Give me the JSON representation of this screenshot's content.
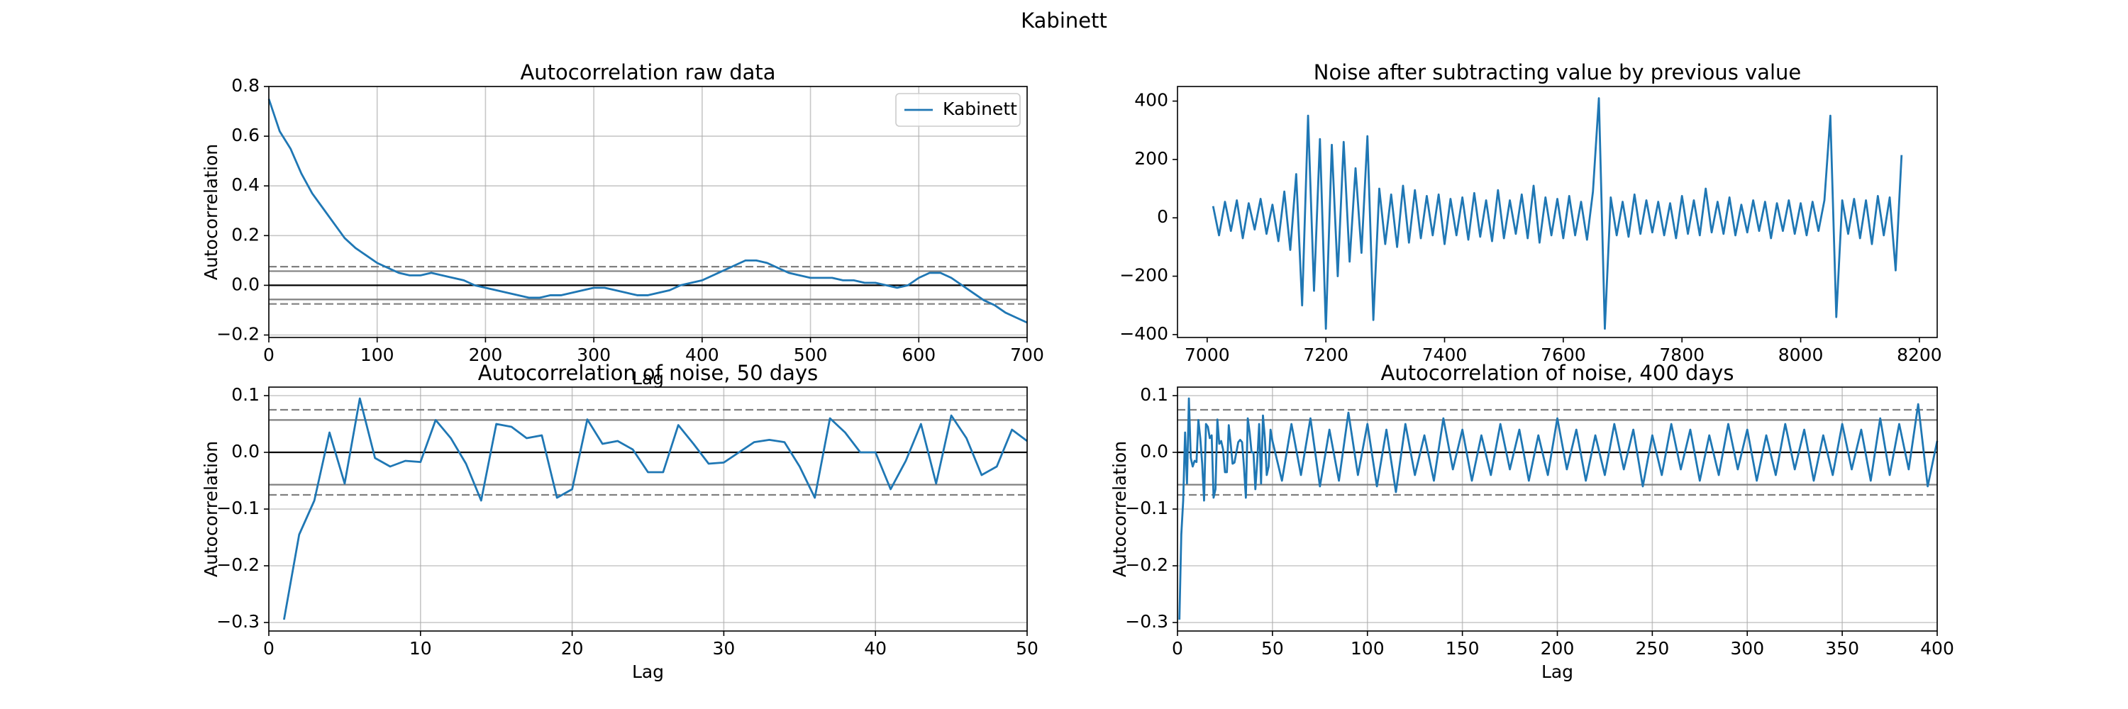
{
  "suptitle": "Kabinett",
  "chart_data": [
    {
      "type": "line",
      "title": "Autocorrelation raw data",
      "xlabel": "Lag",
      "ylabel": "Autocorrelation",
      "x": [
        0,
        10,
        20,
        30,
        40,
        50,
        60,
        70,
        80,
        90,
        100,
        110,
        120,
        130,
        140,
        150,
        160,
        170,
        180,
        190,
        200,
        210,
        220,
        230,
        240,
        250,
        260,
        270,
        280,
        290,
        300,
        310,
        320,
        330,
        340,
        350,
        360,
        370,
        380,
        390,
        400,
        410,
        420,
        430,
        440,
        450,
        460,
        470,
        480,
        490,
        500,
        510,
        520,
        530,
        540,
        550,
        560,
        570,
        580,
        590,
        600,
        610,
        620,
        630,
        640,
        650,
        660,
        670,
        680,
        690,
        700
      ],
      "series": [
        {
          "name": "Kabinett",
          "color": "#1f77b4",
          "values": [
            0.75,
            0.62,
            0.55,
            0.45,
            0.37,
            0.31,
            0.25,
            0.19,
            0.15,
            0.12,
            0.09,
            0.07,
            0.05,
            0.04,
            0.04,
            0.05,
            0.04,
            0.03,
            0.02,
            0.0,
            -0.01,
            -0.02,
            -0.03,
            -0.04,
            -0.05,
            -0.05,
            -0.04,
            -0.04,
            -0.03,
            -0.02,
            -0.01,
            -0.01,
            -0.02,
            -0.03,
            -0.04,
            -0.04,
            -0.03,
            -0.02,
            0.0,
            0.01,
            0.02,
            0.04,
            0.06,
            0.08,
            0.1,
            0.1,
            0.09,
            0.07,
            0.05,
            0.04,
            0.03,
            0.03,
            0.03,
            0.02,
            0.02,
            0.01,
            0.01,
            0.0,
            -0.01,
            0.0,
            0.03,
            0.05,
            0.05,
            0.03,
            0.0,
            -0.03,
            -0.06,
            -0.08,
            -0.11,
            -0.13,
            -0.15
          ]
        }
      ],
      "xlim": [
        0,
        700
      ],
      "xticks": [
        0,
        100,
        200,
        300,
        400,
        500,
        600,
        700
      ],
      "ylim": [
        -0.21,
        0.8
      ],
      "yticks": [
        {
          "value": -0.2,
          "label": "−0.2"
        },
        {
          "value": 0,
          "label": "0.0"
        },
        {
          "value": 0.2,
          "label": "0.2"
        },
        {
          "value": 0.4,
          "label": "0.4"
        },
        {
          "value": 0.6,
          "label": "0.6"
        },
        {
          "value": 0.8,
          "label": "0.8"
        }
      ],
      "grid": true,
      "legend": "upper right",
      "hlines": [
        {
          "y": 0.075,
          "color": "#808080",
          "dashed": true
        },
        {
          "y": 0.057,
          "color": "#808080",
          "dashed": false
        },
        {
          "y": 0,
          "color": "#000000",
          "dashed": false
        },
        {
          "y": -0.057,
          "color": "#808080",
          "dashed": false
        },
        {
          "y": -0.075,
          "color": "#808080",
          "dashed": true
        }
      ]
    },
    {
      "type": "line",
      "title": "Noise after subtracting value by previous value",
      "x": [
        7010,
        7020,
        7030,
        7040,
        7050,
        7060,
        7070,
        7080,
        7090,
        7100,
        7110,
        7120,
        7130,
        7140,
        7150,
        7160,
        7170,
        7180,
        7190,
        7200,
        7210,
        7220,
        7230,
        7240,
        7250,
        7260,
        7270,
        7280,
        7290,
        7300,
        7310,
        7320,
        7330,
        7340,
        7350,
        7360,
        7370,
        7380,
        7390,
        7400,
        7410,
        7420,
        7430,
        7440,
        7450,
        7460,
        7470,
        7480,
        7490,
        7500,
        7510,
        7520,
        7530,
        7540,
        7550,
        7560,
        7570,
        7580,
        7590,
        7600,
        7610,
        7620,
        7630,
        7640,
        7650,
        7660,
        7670,
        7680,
        7690,
        7700,
        7710,
        7720,
        7730,
        7740,
        7750,
        7760,
        7770,
        7780,
        7790,
        7800,
        7810,
        7820,
        7830,
        7840,
        7850,
        7860,
        7870,
        7880,
        7890,
        7900,
        7910,
        7920,
        7930,
        7940,
        7950,
        7960,
        7970,
        7980,
        7990,
        8000,
        8010,
        8020,
        8030,
        8040,
        8050,
        8060,
        8070,
        8080,
        8090,
        8100,
        8110,
        8120,
        8130,
        8140,
        8150,
        8160,
        8170
      ],
      "series": [
        {
          "color": "#1f77b4",
          "values": [
            40,
            -60,
            55,
            -45,
            60,
            -70,
            50,
            -40,
            65,
            -55,
            45,
            -80,
            90,
            -110,
            150,
            -300,
            350,
            -250,
            270,
            -380,
            250,
            -200,
            260,
            -150,
            170,
            -120,
            280,
            -350,
            100,
            -90,
            80,
            -100,
            110,
            -85,
            95,
            -70,
            75,
            -60,
            80,
            -90,
            65,
            -60,
            70,
            -75,
            85,
            -65,
            60,
            -80,
            95,
            -70,
            60,
            -55,
            80,
            -70,
            110,
            -85,
            70,
            -60,
            65,
            -70,
            75,
            -60,
            55,
            -75,
            90,
            410,
            -380,
            70,
            -60,
            55,
            -65,
            80,
            -55,
            60,
            -50,
            55,
            -60,
            50,
            -70,
            75,
            -55,
            60,
            -60,
            100,
            -50,
            55,
            -55,
            70,
            -60,
            45,
            -50,
            60,
            -45,
            55,
            -70,
            50,
            -45,
            60,
            -55,
            50,
            -60,
            55,
            -45,
            60,
            350,
            -340,
            60,
            -55,
            65,
            -70,
            60,
            -90,
            75,
            -60,
            70,
            -180,
            215
          ]
        }
      ],
      "xlim": [
        6950,
        8230
      ],
      "xticks": [
        7000,
        7200,
        7400,
        7600,
        7800,
        8000,
        8200
      ],
      "ylim": [
        -410,
        450
      ],
      "yticks": [
        {
          "value": -400,
          "label": "−400"
        },
        {
          "value": -200,
          "label": "−200"
        },
        0,
        200,
        400
      ],
      "grid": false
    },
    {
      "type": "line",
      "title": "Autocorrelation of noise, 50 days",
      "xlabel": "Lag",
      "ylabel": "Autocorrelation",
      "x": [
        1,
        2,
        3,
        4,
        5,
        6,
        7,
        8,
        9,
        10,
        11,
        12,
        13,
        14,
        15,
        16,
        17,
        18,
        19,
        20,
        21,
        22,
        23,
        24,
        25,
        26,
        27,
        28,
        29,
        30,
        31,
        32,
        33,
        34,
        35,
        36,
        37,
        38,
        39,
        40,
        41,
        42,
        43,
        44,
        45,
        46,
        47,
        48,
        49,
        50
      ],
      "series": [
        {
          "color": "#1f77b4",
          "values": [
            -0.295,
            -0.145,
            -0.085,
            0.035,
            -0.055,
            0.095,
            -0.01,
            -0.025,
            -0.015,
            -0.017,
            0.057,
            0.025,
            -0.02,
            -0.085,
            0.05,
            0.045,
            0.025,
            0.03,
            -0.08,
            -0.065,
            0.058,
            0.015,
            0.02,
            0.005,
            -0.035,
            -0.035,
            0.048,
            0.015,
            -0.02,
            -0.018,
            0.0,
            0.018,
            0.022,
            0.018,
            -0.025,
            -0.08,
            0.06,
            0.035,
            0.0,
            0.0,
            -0.065,
            -0.015,
            0.05,
            -0.055,
            0.065,
            0.025,
            -0.04,
            -0.025,
            0.04,
            0.02
          ]
        }
      ],
      "xlim": [
        0,
        50
      ],
      "xticks": [
        0,
        10,
        20,
        30,
        40,
        50
      ],
      "ylim": [
        -0.315,
        0.115
      ],
      "yticks": [
        {
          "value": -0.3,
          "label": "−0.3"
        },
        {
          "value": -0.2,
          "label": "−0.2"
        },
        {
          "value": -0.1,
          "label": "−0.1"
        },
        {
          "value": 0,
          "label": "0.0"
        },
        {
          "value": 0.1,
          "label": "0.1"
        }
      ],
      "grid": true,
      "hlines": [
        {
          "y": 0.075,
          "color": "#808080",
          "dashed": true
        },
        {
          "y": 0.057,
          "color": "#808080",
          "dashed": false
        },
        {
          "y": 0,
          "color": "#000000",
          "dashed": false
        },
        {
          "y": -0.057,
          "color": "#808080",
          "dashed": false
        },
        {
          "y": -0.075,
          "color": "#808080",
          "dashed": true
        }
      ]
    },
    {
      "type": "line",
      "title": "Autocorrelation of noise, 400 days",
      "xlabel": "Lag",
      "ylabel": "Autocorrelation",
      "x": [
        1,
        2,
        3,
        4,
        5,
        6,
        7,
        8,
        9,
        10,
        11,
        12,
        13,
        14,
        15,
        16,
        17,
        18,
        19,
        20,
        21,
        22,
        23,
        24,
        25,
        26,
        27,
        28,
        29,
        30,
        31,
        32,
        33,
        34,
        35,
        36,
        37,
        38,
        39,
        40,
        41,
        42,
        43,
        44,
        45,
        46,
        47,
        48,
        49,
        50,
        55,
        60,
        65,
        70,
        75,
        80,
        85,
        90,
        95,
        100,
        105,
        110,
        115,
        120,
        125,
        130,
        135,
        140,
        145,
        150,
        155,
        160,
        165,
        170,
        175,
        180,
        185,
        190,
        195,
        200,
        205,
        210,
        215,
        220,
        225,
        230,
        235,
        240,
        245,
        250,
        255,
        260,
        265,
        270,
        275,
        280,
        285,
        290,
        295,
        300,
        305,
        310,
        315,
        320,
        325,
        330,
        335,
        340,
        345,
        350,
        355,
        360,
        365,
        370,
        375,
        380,
        385,
        390,
        395,
        400
      ],
      "series": [
        {
          "color": "#1f77b4",
          "values": [
            -0.295,
            -0.145,
            -0.085,
            0.035,
            -0.055,
            0.095,
            -0.01,
            -0.025,
            -0.015,
            -0.017,
            0.057,
            0.025,
            -0.02,
            -0.085,
            0.05,
            0.045,
            0.025,
            0.03,
            -0.08,
            -0.065,
            0.058,
            0.015,
            0.02,
            0.005,
            -0.035,
            -0.035,
            0.048,
            0.015,
            -0.02,
            -0.018,
            0.0,
            0.018,
            0.022,
            0.018,
            -0.025,
            -0.08,
            0.06,
            0.035,
            0.0,
            0.0,
            -0.065,
            -0.015,
            0.05,
            -0.055,
            0.065,
            0.025,
            -0.04,
            -0.025,
            0.04,
            0.02,
            -0.05,
            0.05,
            -0.04,
            0.06,
            -0.06,
            0.04,
            -0.05,
            0.07,
            -0.04,
            0.05,
            -0.06,
            0.04,
            -0.07,
            0.05,
            -0.04,
            0.03,
            -0.05,
            0.06,
            -0.03,
            0.04,
            -0.05,
            0.03,
            -0.04,
            0.05,
            -0.03,
            0.04,
            -0.05,
            0.03,
            -0.04,
            0.06,
            -0.03,
            0.04,
            -0.05,
            0.03,
            -0.04,
            0.05,
            -0.03,
            0.04,
            -0.06,
            0.03,
            -0.04,
            0.05,
            -0.03,
            0.04,
            -0.05,
            0.03,
            -0.04,
            0.05,
            -0.03,
            0.04,
            -0.05,
            0.03,
            -0.04,
            0.05,
            -0.03,
            0.04,
            -0.05,
            0.03,
            -0.04,
            0.05,
            -0.03,
            0.04,
            -0.05,
            0.06,
            -0.04,
            0.05,
            -0.03,
            0.085,
            -0.06,
            0.02
          ]
        }
      ],
      "xlim": [
        0,
        400
      ],
      "xticks": [
        0,
        50,
        100,
        150,
        200,
        250,
        300,
        350,
        400
      ],
      "ylim": [
        -0.315,
        0.115
      ],
      "yticks": [
        {
          "value": -0.3,
          "label": "−0.3"
        },
        {
          "value": -0.2,
          "label": "−0.2"
        },
        {
          "value": -0.1,
          "label": "−0.1"
        },
        {
          "value": 0,
          "label": "0.0"
        },
        {
          "value": 0.1,
          "label": "0.1"
        }
      ],
      "grid": true,
      "hlines": [
        {
          "y": 0.075,
          "color": "#808080",
          "dashed": true
        },
        {
          "y": 0.057,
          "color": "#808080",
          "dashed": false
        },
        {
          "y": 0,
          "color": "#000000",
          "dashed": false
        },
        {
          "y": -0.057,
          "color": "#808080",
          "dashed": false
        },
        {
          "y": -0.075,
          "color": "#808080",
          "dashed": true
        }
      ]
    }
  ]
}
